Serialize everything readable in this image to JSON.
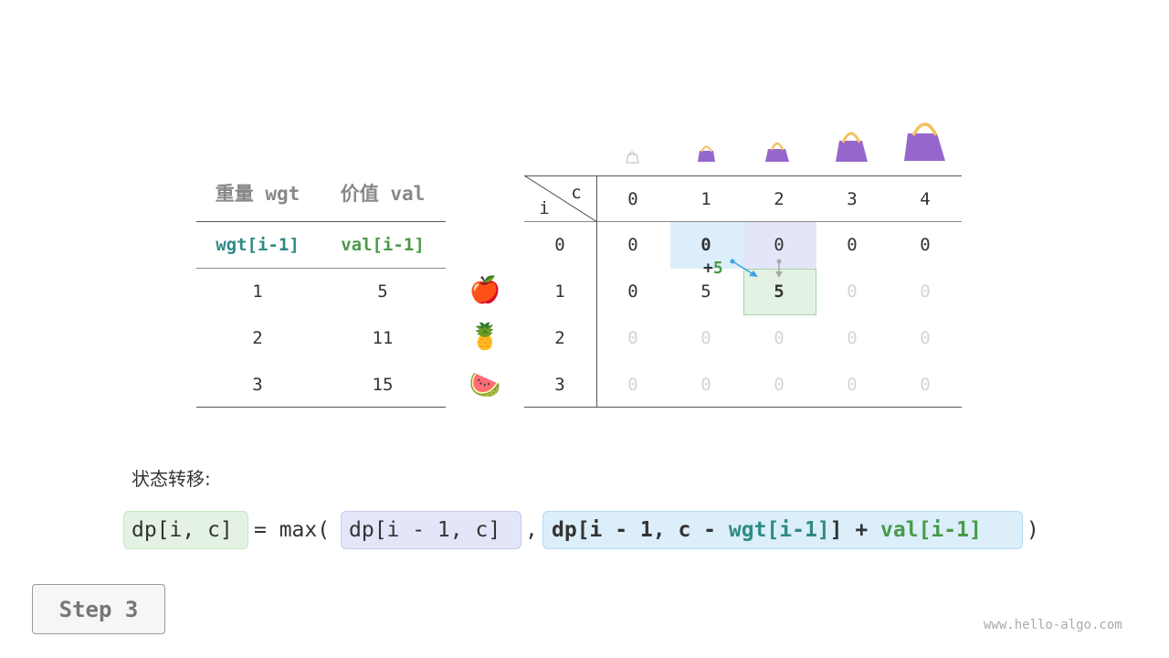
{
  "left_table": {
    "headers": [
      "重量 wgt",
      "价值 val"
    ],
    "subheaders": [
      "wgt[i-1]",
      "val[i-1]"
    ],
    "rows": [
      [
        "1",
        "5"
      ],
      [
        "2",
        "11"
      ],
      [
        "3",
        "15"
      ]
    ]
  },
  "fruits": [
    "🍎",
    "🍍",
    "🍉"
  ],
  "dp_table": {
    "corner_i": "i",
    "corner_c": "c",
    "capacities": [
      "0",
      "1",
      "2",
      "3",
      "4"
    ],
    "row_labels": [
      "0",
      "1",
      "2",
      "3"
    ],
    "rows": [
      [
        "0",
        "0",
        "0",
        "0",
        "0"
      ],
      [
        "0",
        "5",
        "5",
        "0",
        "0"
      ],
      [
        "0",
        "0",
        "0",
        "0",
        "0"
      ],
      [
        "0",
        "0",
        "0",
        "0",
        "0"
      ]
    ],
    "annotation": {
      "plus": "+",
      "value": "5"
    }
  },
  "colors": {
    "teal": "#2e8b84",
    "green": "#4a9a48",
    "blue_bg": "#dbeefa",
    "purple_bg": "#e3e6f9",
    "green_bg": "#e4f2e3",
    "bag": "#9566cc"
  },
  "formula": {
    "label": "状态转移:",
    "lhs": "dp[i, c]",
    "eq": "= max(",
    "a": "dp[i - 1, c]",
    "comma": ",",
    "b1": "dp[i - 1, c - ",
    "b2": "wgt[i-1]",
    "b3": "] + ",
    "b4": "val[i-1]",
    "close": ")"
  },
  "step_label": "Step 3",
  "watermark": "www.hello-algo.com"
}
